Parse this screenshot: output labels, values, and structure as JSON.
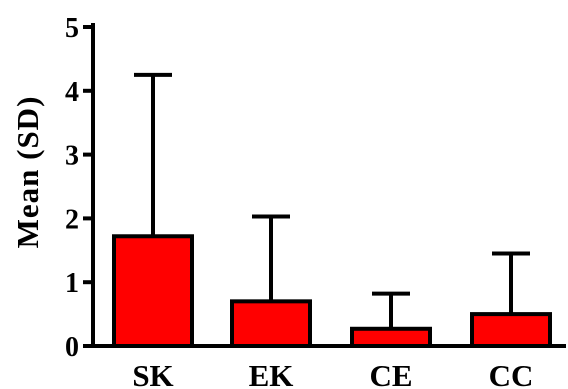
{
  "chart_data": {
    "type": "bar",
    "title": "",
    "xlabel": "",
    "ylabel": "Mean (SD)",
    "categories": [
      "SK",
      "EK",
      "CE",
      "CC"
    ],
    "values": [
      1.72,
      0.7,
      0.27,
      0.5
    ],
    "error_upper": [
      4.25,
      2.03,
      0.82,
      1.45
    ],
    "ylim": [
      0,
      5
    ],
    "yticks": [
      0,
      1,
      2,
      3,
      4,
      5
    ],
    "grid": false,
    "legend": "none",
    "bar_color": "#ff0000",
    "edge_color": "#000000"
  }
}
